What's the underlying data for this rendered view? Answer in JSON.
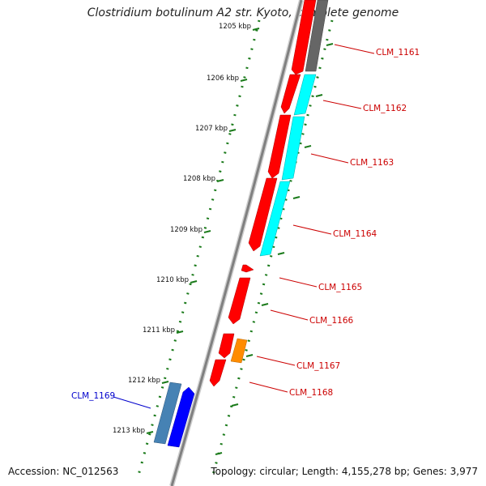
{
  "title": "Clostridium botulinum A2 str. Kyoto, complete genome",
  "accession": "Accession: NC_012563",
  "summary": "Topology: circular; Length: 4,155,278 bp; Genes: 3,977",
  "colors": {
    "backbone": "#808080",
    "scale": "#1a7a1a",
    "forward_gene_label": "#cc0000",
    "reverse_gene_label": "#0000cc",
    "cds_red": "#ff0000",
    "cds_cyan": "#00ffff",
    "cds_gray": "#666666",
    "cds_orange": "#ff8c00",
    "cds_steelblue": "#4682b4",
    "cds_blue": "#0000ff"
  },
  "scale_ticks": [
    "1205 kbp",
    "1206 kbp",
    "1207 kbp",
    "1208 kbp",
    "1209 kbp",
    "1210 kbp",
    "1211 kbp",
    "1212 kbp",
    "1213 kbp"
  ],
  "gene_labels": [
    {
      "text": "CLM_1161",
      "strand": "forward"
    },
    {
      "text": "CLM_1162",
      "strand": "forward"
    },
    {
      "text": "CLM_1163",
      "strand": "forward"
    },
    {
      "text": "CLM_1164",
      "strand": "forward"
    },
    {
      "text": "CLM_1165",
      "strand": "forward"
    },
    {
      "text": "CLM_1166",
      "strand": "forward"
    },
    {
      "text": "CLM_1167",
      "strand": "forward"
    },
    {
      "text": "CLM_1168",
      "strand": "forward"
    },
    {
      "text": "CLM_1169",
      "strand": "reverse"
    }
  ]
}
